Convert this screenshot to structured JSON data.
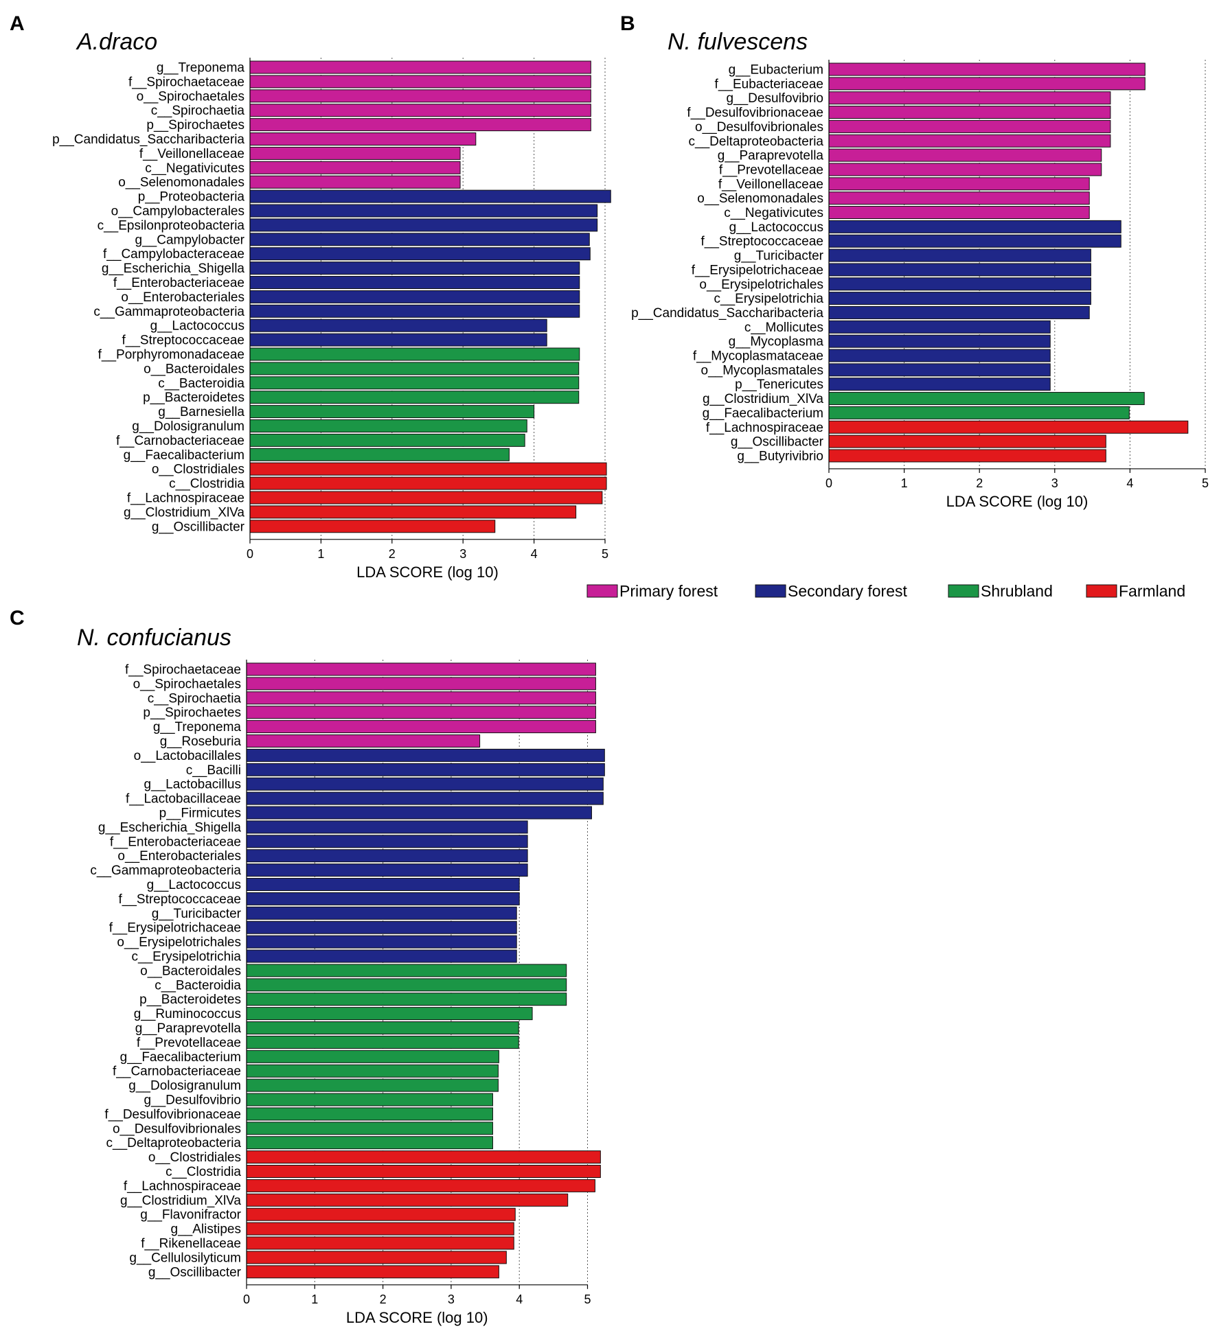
{
  "colors": {
    "Primary forest": "#c71f97",
    "Secondary forest": "#1f2788",
    "Shrubland": "#1b9646",
    "Farmland": "#e2191c"
  },
  "legend": {
    "items": [
      {
        "label": "Primary forest",
        "color": "#c71f97"
      },
      {
        "label": "Secondary forest",
        "color": "#1f2788"
      },
      {
        "label": "Shrubland",
        "color": "#1b9646"
      },
      {
        "label": "Farmland",
        "color": "#e2191c"
      }
    ]
  },
  "chart_data": [
    {
      "panel": "A",
      "title": "A.draco",
      "type": "bar",
      "orientation": "horizontal",
      "xlabel": "LDA SCORE (log 10)",
      "xlim": [
        0,
        5
      ],
      "xticks": [
        0,
        1,
        2,
        3,
        4,
        5
      ],
      "grid": "vertical dotted",
      "categories": [
        "g__Treponema",
        "f__Spirochaetaceae",
        "o__Spirochaetales",
        "c__Spirochaetia",
        "p__Spirochaetes",
        "p__Candidatus_Saccharibacteria",
        "f__Veillonellaceae",
        "c__Negativicutes",
        "o__Selenomonadales",
        "p__Proteobacteria",
        "o__Campylobacterales",
        "c__Epsilonproteobacteria",
        "g__Campylobacter",
        "f__Campylobacteraceae",
        "g__Escherichia_Shigella",
        "f__Enterobacteriaceae",
        "o__Enterobacteriales",
        "c__Gammaproteobacteria",
        "g__Lactococcus",
        "f__Streptococcaceae",
        "f__Porphyromonadaceae",
        "o__Bacteroidales",
        "c__Bacteroidia",
        "p__Bacteroidetes",
        "g__Barnesiella",
        "g__Dolosigranulum",
        "f__Carnobacteriaceae",
        "g__Faecalibacterium",
        "o__Clostridiales",
        "c__Clostridia",
        "f__Lachnospiraceae",
        "g__Clostridium_XlVa",
        "g__Oscillibacter"
      ],
      "values": [
        4.8,
        4.8,
        4.8,
        4.8,
        4.8,
        3.18,
        2.96,
        2.96,
        2.96,
        5.08,
        4.89,
        4.89,
        4.78,
        4.79,
        4.64,
        4.64,
        4.64,
        4.64,
        4.18,
        4.18,
        4.64,
        4.63,
        4.63,
        4.63,
        4.0,
        3.9,
        3.87,
        3.65,
        5.02,
        5.02,
        4.96,
        4.59,
        3.45
      ],
      "groups": [
        "Primary forest",
        "Primary forest",
        "Primary forest",
        "Primary forest",
        "Primary forest",
        "Primary forest",
        "Primary forest",
        "Primary forest",
        "Primary forest",
        "Secondary forest",
        "Secondary forest",
        "Secondary forest",
        "Secondary forest",
        "Secondary forest",
        "Secondary forest",
        "Secondary forest",
        "Secondary forest",
        "Secondary forest",
        "Secondary forest",
        "Secondary forest",
        "Shrubland",
        "Shrubland",
        "Shrubland",
        "Shrubland",
        "Shrubland",
        "Shrubland",
        "Shrubland",
        "Shrubland",
        "Farmland",
        "Farmland",
        "Farmland",
        "Farmland",
        "Farmland"
      ]
    },
    {
      "panel": "B",
      "title": "N. fulvescens",
      "type": "bar",
      "orientation": "horizontal",
      "xlabel": "LDA SCORE (log 10)",
      "xlim": [
        0,
        5
      ],
      "xticks": [
        0,
        1,
        2,
        3,
        4,
        5
      ],
      "grid": "vertical dotted",
      "categories": [
        "g__Eubacterium",
        "f__Eubacteriaceae",
        "g__Desulfovibrio",
        "f__Desulfovibrionaceae",
        "o__Desulfovibrionales",
        "c__Deltaproteobacteria",
        "g__Paraprevotella",
        "f__Prevotellaceae",
        "f__Veillonellaceae",
        "o__Selenomonadales",
        "c__Negativicutes",
        "g__Lactococcus",
        "f__Streptococcaceae",
        "g__Turicibacter",
        "f__Erysipelotrichaceae",
        "o__Erysipelotrichales",
        "c__Erysipelotrichia",
        "p__Candidatus_Saccharibacteria",
        "c__Mollicutes",
        "g__Mycoplasma",
        "f__Mycoplasmataceae",
        "o__Mycoplasmatales",
        "p__Tenericutes",
        "g__Clostridium_XlVa",
        "g__Faecalibacterium",
        "f__Lachnospiraceae",
        "g__Oscillibacter",
        "g__Butyrivibrio"
      ],
      "values": [
        4.2,
        4.2,
        3.74,
        3.74,
        3.74,
        3.74,
        3.62,
        3.62,
        3.46,
        3.46,
        3.46,
        3.88,
        3.88,
        3.48,
        3.48,
        3.48,
        3.48,
        3.46,
        2.94,
        2.94,
        2.94,
        2.94,
        2.94,
        4.19,
        3.99,
        4.77,
        3.68,
        3.68
      ],
      "groups": [
        "Primary forest",
        "Primary forest",
        "Primary forest",
        "Primary forest",
        "Primary forest",
        "Primary forest",
        "Primary forest",
        "Primary forest",
        "Primary forest",
        "Primary forest",
        "Primary forest",
        "Secondary forest",
        "Secondary forest",
        "Secondary forest",
        "Secondary forest",
        "Secondary forest",
        "Secondary forest",
        "Secondary forest",
        "Secondary forest",
        "Secondary forest",
        "Secondary forest",
        "Secondary forest",
        "Secondary forest",
        "Shrubland",
        "Shrubland",
        "Farmland",
        "Farmland",
        "Farmland"
      ]
    },
    {
      "panel": "C",
      "title": "N. confucianus",
      "type": "bar",
      "orientation": "horizontal",
      "xlabel": "LDA SCORE (log 10)",
      "xlim": [
        0,
        5
      ],
      "xticks": [
        0,
        1,
        2,
        3,
        4,
        5
      ],
      "grid": "vertical dotted",
      "categories": [
        "f__Spirochaetaceae",
        "o__Spirochaetales",
        "c__Spirochaetia",
        "p__Spirochaetes",
        "g__Treponema",
        "g__Roseburia",
        "o__Lactobacillales",
        "c__Bacilli",
        "g__Lactobacillus",
        "f__Lactobacillaceae",
        "p__Firmicutes",
        "g__Escherichia_Shigella",
        "f__Enterobacteriaceae",
        "o__Enterobacteriales",
        "c__Gammaproteobacteria",
        "g__Lactococcus",
        "f__Streptococcaceae",
        "g__Turicibacter",
        "f__Erysipelotrichaceae",
        "o__Erysipelotrichales",
        "c__Erysipelotrichia",
        "o__Bacteroidales",
        "c__Bacteroidia",
        "p__Bacteroidetes",
        "g__Ruminococcus",
        "g__Paraprevotella",
        "f__Prevotellaceae",
        "g__Faecalibacterium",
        "f__Carnobacteriaceae",
        "g__Dolosigranulum",
        "g__Desulfovibrio",
        "f__Desulfovibrionaceae",
        "o__Desulfovibrionales",
        "c__Deltaproteobacteria",
        "o__Clostridiales",
        "c__Clostridia",
        "f__Lachnospiraceae",
        "g__Clostridium_XlVa",
        "g__Flavonifractor",
        "g__Alistipes",
        "f__Rikenellaceae",
        "g__Cellulosilyticum",
        "g__Oscillibacter"
      ],
      "values": [
        5.12,
        5.12,
        5.12,
        5.12,
        5.12,
        3.42,
        5.25,
        5.25,
        5.23,
        5.23,
        5.06,
        4.12,
        4.12,
        4.12,
        4.12,
        4.0,
        4.0,
        3.96,
        3.96,
        3.96,
        3.96,
        4.69,
        4.69,
        4.69,
        4.19,
        3.99,
        3.99,
        3.7,
        3.69,
        3.69,
        3.61,
        3.61,
        3.61,
        3.61,
        5.19,
        5.19,
        5.11,
        4.71,
        3.94,
        3.92,
        3.92,
        3.81,
        3.7
      ],
      "groups": [
        "Primary forest",
        "Primary forest",
        "Primary forest",
        "Primary forest",
        "Primary forest",
        "Primary forest",
        "Secondary forest",
        "Secondary forest",
        "Secondary forest",
        "Secondary forest",
        "Secondary forest",
        "Secondary forest",
        "Secondary forest",
        "Secondary forest",
        "Secondary forest",
        "Secondary forest",
        "Secondary forest",
        "Secondary forest",
        "Secondary forest",
        "Secondary forest",
        "Secondary forest",
        "Shrubland",
        "Shrubland",
        "Shrubland",
        "Shrubland",
        "Shrubland",
        "Shrubland",
        "Shrubland",
        "Shrubland",
        "Shrubland",
        "Shrubland",
        "Shrubland",
        "Shrubland",
        "Shrubland",
        "Farmland",
        "Farmland",
        "Farmland",
        "Farmland",
        "Farmland",
        "Farmland",
        "Farmland",
        "Farmland",
        "Farmland"
      ]
    }
  ]
}
